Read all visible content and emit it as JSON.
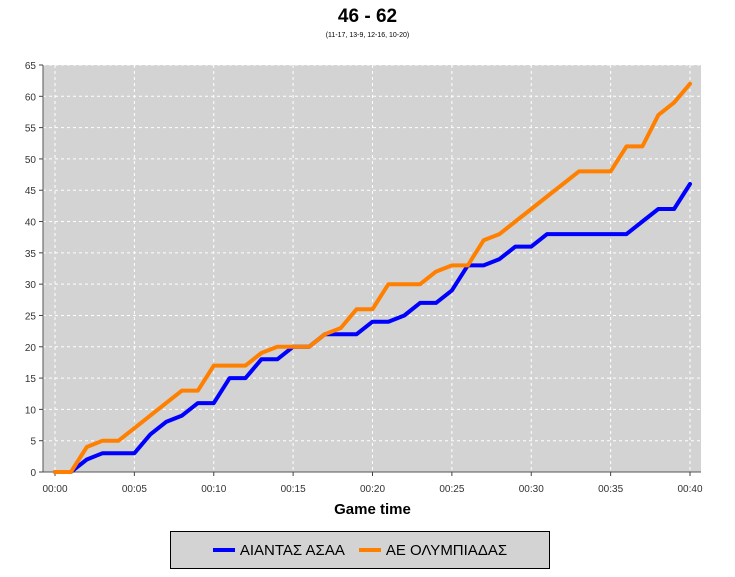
{
  "chart_data": {
    "type": "line",
    "title": "46 - 62",
    "subtitle": "(11-17, 13-9, 12-16, 10-20)",
    "xlabel": "Game time",
    "ylabel": "",
    "xlim": [
      0,
      40
    ],
    "ylim": [
      0,
      65
    ],
    "x_ticks": [
      "00:00",
      "00:05",
      "00:10",
      "00:15",
      "00:20",
      "00:25",
      "00:30",
      "00:35",
      "00:40"
    ],
    "y_ticks": [
      0,
      5,
      10,
      15,
      20,
      25,
      30,
      35,
      40,
      45,
      50,
      55,
      60,
      65
    ],
    "grid": true,
    "legend_position": "bottom",
    "series": [
      {
        "name": "ΑΙΑΝΤΑΣ ΑΣΑΑ",
        "color": "#0000ff",
        "x": [
          0,
          1,
          2,
          3,
          4,
          5,
          6,
          7,
          8,
          9,
          10,
          11,
          12,
          13,
          14,
          15,
          16,
          17,
          18,
          19,
          20,
          21,
          22,
          23,
          24,
          25,
          26,
          27,
          28,
          29,
          30,
          31,
          32,
          33,
          34,
          35,
          36,
          37,
          38,
          39,
          40
        ],
        "values": [
          0,
          0,
          2,
          3,
          3,
          3,
          6,
          8,
          9,
          11,
          11,
          15,
          15,
          18,
          18,
          20,
          20,
          22,
          22,
          22,
          24,
          24,
          25,
          27,
          27,
          29,
          33,
          33,
          34,
          36,
          36,
          38,
          38,
          38,
          38,
          38,
          38,
          40,
          42,
          42,
          46
        ]
      },
      {
        "name": "ΑΕ ΟΛΥΜΠΙΑΔΑΣ",
        "color": "#ff8000",
        "x": [
          0,
          1,
          2,
          3,
          4,
          5,
          6,
          7,
          8,
          9,
          10,
          11,
          12,
          13,
          14,
          15,
          16,
          17,
          18,
          19,
          20,
          21,
          22,
          23,
          24,
          25,
          26,
          27,
          28,
          29,
          30,
          31,
          32,
          33,
          34,
          35,
          36,
          37,
          38,
          39,
          40
        ],
        "values": [
          0,
          0,
          4,
          5,
          5,
          7,
          9,
          11,
          13,
          13,
          17,
          17,
          17,
          19,
          20,
          20,
          20,
          22,
          23,
          26,
          26,
          30,
          30,
          30,
          32,
          33,
          33,
          37,
          38,
          40,
          42,
          44,
          46,
          48,
          48,
          48,
          52,
          52,
          57,
          59,
          62
        ]
      }
    ]
  }
}
